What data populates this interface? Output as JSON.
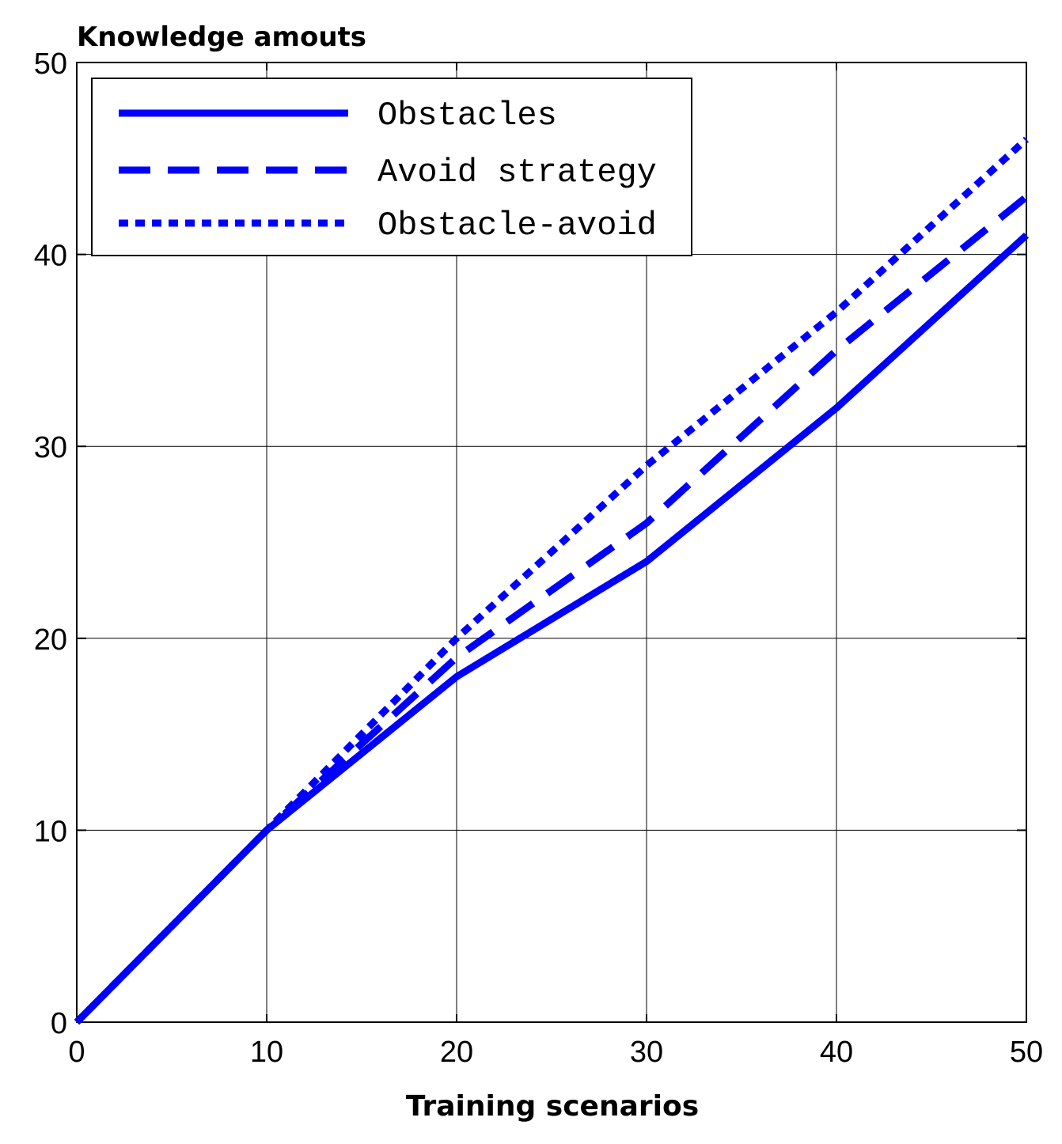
{
  "chart_data": {
    "type": "line",
    "title": "",
    "ylabel": "Knowledge amouts",
    "xlabel": "Training scenarios",
    "xlim": [
      0,
      50
    ],
    "ylim": [
      0,
      50
    ],
    "xticks": [
      0,
      10,
      20,
      30,
      40,
      50
    ],
    "yticks": [
      0,
      10,
      20,
      30,
      40,
      50
    ],
    "grid": true,
    "legend_position": "top-left",
    "color": "#0000ff",
    "series": [
      {
        "name": "Obstacles",
        "style": "solid",
        "x": [
          0,
          10,
          20,
          30,
          40,
          50
        ],
        "y": [
          0,
          10,
          18,
          24,
          32,
          41
        ]
      },
      {
        "name": "Avoid strategy",
        "style": "dashed",
        "x": [
          0,
          10,
          20,
          30,
          40,
          50
        ],
        "y": [
          0,
          10,
          19,
          26,
          35,
          43
        ]
      },
      {
        "name": "Obstacle-avoid",
        "style": "dotted",
        "x": [
          0,
          10,
          20,
          30,
          40,
          50
        ],
        "y": [
          0,
          10,
          20,
          29,
          37,
          46
        ]
      }
    ]
  }
}
